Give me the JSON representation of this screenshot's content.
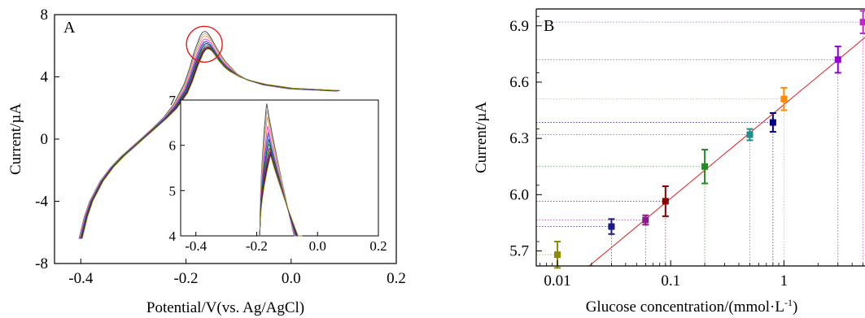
{
  "chart_data": [
    {
      "panel_label": "A",
      "type": "line",
      "xlabel": "Potential/V(vs. Ag/AgCl)",
      "ylabel": "Current/µA",
      "xlim": [
        -0.45,
        0.2
      ],
      "ylim": [
        -8,
        8
      ],
      "xticks": [
        -0.4,
        -0.2,
        0.0,
        0.2
      ],
      "xtick_labels": [
        "-0.4",
        "-0.2",
        "0.0",
        "0.2"
      ],
      "yticks": [
        -8,
        -4,
        0,
        4,
        8
      ],
      "ytick_labels": [
        "-8",
        "-4",
        "0",
        "4",
        "8"
      ],
      "x": [
        -0.4,
        -0.39,
        -0.38,
        -0.36,
        -0.34,
        -0.32,
        -0.3,
        -0.28,
        -0.26,
        -0.24,
        -0.22,
        -0.2,
        -0.19,
        -0.18,
        -0.17,
        -0.165,
        -0.16,
        -0.155,
        -0.15,
        -0.14,
        -0.13,
        -0.12,
        -0.1,
        -0.08,
        -0.05,
        -0.02,
        0.0,
        0.03,
        0.06,
        0.09
      ],
      "base_curve": [
        -6.4,
        -5.0,
        -4.0,
        -2.7,
        -1.8,
        -1.1,
        -0.5,
        0.1,
        0.7,
        1.3,
        2.0,
        3.0,
        3.8,
        4.8,
        5.6,
        5.85,
        5.9,
        5.8,
        5.6,
        5.1,
        4.7,
        4.4,
        4.0,
        3.75,
        3.5,
        3.35,
        3.25,
        3.2,
        3.15,
        3.1
      ],
      "series": [
        {
          "color": "#444444",
          "peak": 6.95,
          "shift": -0.012
        },
        {
          "color": "#aaaaaa",
          "peak": 6.8,
          "shift": -0.01
        },
        {
          "color": "#ff9a3c",
          "peak": 6.65,
          "shift": -0.008
        },
        {
          "color": "#dd44dd",
          "peak": 6.45,
          "shift": -0.006
        },
        {
          "color": "#8a2be2",
          "peak": 6.3,
          "shift": -0.004
        },
        {
          "color": "#22aaaa",
          "peak": 6.25,
          "shift": -0.002
        },
        {
          "color": "#1a1a99",
          "peak": 6.15,
          "shift": 0.0
        },
        {
          "color": "#228b22",
          "peak": 6.05,
          "shift": 0.002
        },
        {
          "color": "#8b1a1a",
          "peak": 5.95,
          "shift": 0.004
        },
        {
          "color": "#800080",
          "peak": 5.88,
          "shift": 0.006
        },
        {
          "color": "#000088",
          "peak": 5.82,
          "shift": 0.008
        },
        {
          "color": "#999900",
          "peak": 5.78,
          "shift": 0.01
        }
      ],
      "highlight_circle": {
        "x": -0.165,
        "y": 6.1,
        "color": "#ee1111"
      },
      "inset": {
        "xlim": [
          -0.45,
          0.2
        ],
        "ylim": [
          4,
          7
        ],
        "xticks": [
          -0.4,
          -0.2,
          0.0,
          0.2
        ],
        "xtick_labels": [
          "-0.4",
          "-0.2",
          "0.0",
          "0.2"
        ],
        "yticks": [
          4,
          5,
          6,
          7
        ],
        "ytick_labels": [
          "4",
          "5",
          "6",
          "7"
        ]
      }
    },
    {
      "panel_label": "B",
      "type": "scatter",
      "xlabel": "Glucose concentration/(mmol·L",
      "xlabel_superscript": "-1",
      "xlabel_suffix": ")",
      "ylabel": "Current/µA",
      "xscale": "log",
      "xlim": [
        0.0065,
        5.2
      ],
      "ylim": [
        5.62,
        6.99
      ],
      "xticks": [
        0.01,
        0.1,
        1
      ],
      "xtick_labels": [
        "0.01",
        "0.1",
        "1"
      ],
      "yticks": [
        5.7,
        6.0,
        6.3,
        6.6,
        6.9
      ],
      "ytick_labels": [
        "5.7",
        "6.0",
        "6.3",
        "6.6",
        "6.9"
      ],
      "fit_line": {
        "color": "#e03030",
        "slope_per_decade": 0.5,
        "intercept_at_1": 6.48
      },
      "points": [
        {
          "x": 0.01,
          "y": 5.68,
          "err": 0.07,
          "color": "#8b8b00"
        },
        {
          "x": 0.03,
          "y": 5.83,
          "err": 0.04,
          "color": "#1a1a8c"
        },
        {
          "x": 0.06,
          "y": 5.865,
          "err": 0.025,
          "color": "#8b1a8b"
        },
        {
          "x": 0.09,
          "y": 5.965,
          "err": 0.08,
          "color": "#8b0000"
        },
        {
          "x": 0.2,
          "y": 6.15,
          "err": 0.09,
          "color": "#228b22"
        },
        {
          "x": 0.5,
          "y": 6.32,
          "err": 0.03,
          "color": "#228b8b"
        },
        {
          "x": 0.8,
          "y": 6.385,
          "err": 0.05,
          "color": "#00008b"
        },
        {
          "x": 1.0,
          "y": 6.51,
          "err": 0.06,
          "color": "#ff8c00"
        },
        {
          "x": 3.0,
          "y": 6.72,
          "err": 0.07,
          "color": "#9400d3"
        },
        {
          "x": 5.0,
          "y": 6.92,
          "err": 0.06,
          "color": "#cc22cc"
        }
      ]
    }
  ]
}
